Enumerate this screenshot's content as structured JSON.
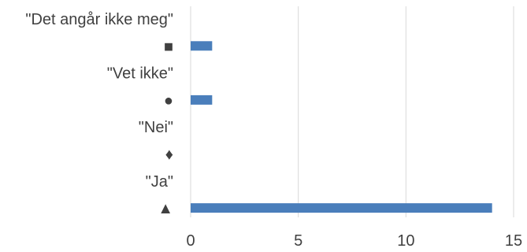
{
  "chart_data": {
    "type": "bar",
    "orientation": "horizontal",
    "categories": [
      "\"Det angår ikke meg\"",
      "■",
      "\"Vet ikke\"",
      "●",
      "\"Nei\"",
      "♦",
      "\"Ja\"",
      "▲"
    ],
    "values": [
      0,
      1,
      0,
      1,
      0,
      0,
      0,
      14
    ],
    "xlim": [
      0,
      15
    ],
    "xticks": [
      0,
      5,
      10,
      15
    ],
    "bar_color": "#4a7ebb",
    "grid": true,
    "legend": "none"
  }
}
